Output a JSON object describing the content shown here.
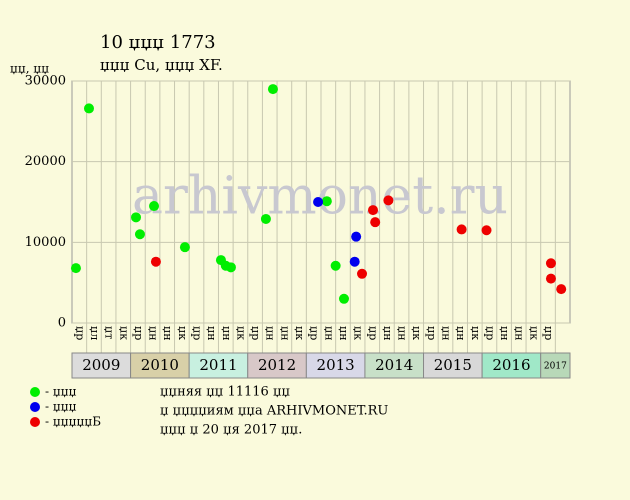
{
  "chart_data": {
    "type": "scatter",
    "title": "10 џџџ 1773",
    "subtitle": "џџџ Cu, џџџ XF.",
    "y_label": "џџ, џџ",
    "watermark": "arhivmonet.ru",
    "categories": [
      "џр",
      "џл",
      "џт",
      "џк",
      "џр",
      "џн",
      "џн",
      "џк",
      "џр",
      "џн",
      "џн",
      "џк",
      "џр",
      "џн",
      "џн",
      "џк",
      "џр",
      "џн",
      "џн",
      "џк",
      "џр",
      "џн",
      "џн",
      "џк",
      "џр",
      "џн",
      "џн",
      "џк",
      "џр",
      "џн",
      "џн",
      "џк",
      "џр",
      null
    ],
    "years": [
      {
        "label": "2009",
        "color": "#dcdcdc"
      },
      {
        "label": "2010",
        "color": "#d8d0a8"
      },
      {
        "label": "2011",
        "color": "#c8f0e0"
      },
      {
        "label": "2012",
        "color": "#d8c8c8"
      },
      {
        "label": "2013",
        "color": "#d8d8e8"
      },
      {
        "label": "2014",
        "color": "#c8e0c8"
      },
      {
        "label": "2015",
        "color": "#d8d8d8"
      },
      {
        "label": "2016",
        "color": "#a0e8c8"
      },
      {
        "label": "2017",
        "color": "#b8d8b8"
      }
    ],
    "xlim": [
      0,
      34
    ],
    "ylim": [
      0,
      30000
    ],
    "yticks": [
      0,
      10000,
      20000,
      30000
    ],
    "grid": true,
    "series": [
      {
        "name": "- џџџ",
        "color": "#00ee00",
        "x": [
          0.27,
          1.16,
          4.37,
          4.64,
          5.6,
          7.71,
          10.17,
          10.5,
          10.85,
          13.24,
          13.72,
          17.4,
          18.0,
          18.57
        ],
        "values": [
          6800,
          26600,
          13100,
          11000,
          14500,
          9400,
          7800,
          7100,
          6900,
          12900,
          29000,
          15100,
          7100,
          3000
        ]
      },
      {
        "name": "- џџџ",
        "color": "#0000ee",
        "x": [
          16.8,
          19.4,
          19.3
        ],
        "values": [
          15000,
          10700,
          7600
        ]
      },
      {
        "name": "- џџџџџБ",
        "color": "#ee0000",
        "x": [
          5.73,
          19.8,
          20.55,
          20.7,
          21.6,
          26.6,
          28.3,
          32.7,
          32.7,
          33.4
        ],
        "values": [
          7600,
          6100,
          14000,
          12500,
          15200,
          11600,
          11500,
          7400,
          5500,
          4200
        ]
      }
    ],
    "notes": [
      "џџняя џџ 11116 џџ",
      "џ џџџџиям џџа ARHIVMONET.RU",
      "џџџ џ 20 џя 2017 џџ."
    ]
  }
}
